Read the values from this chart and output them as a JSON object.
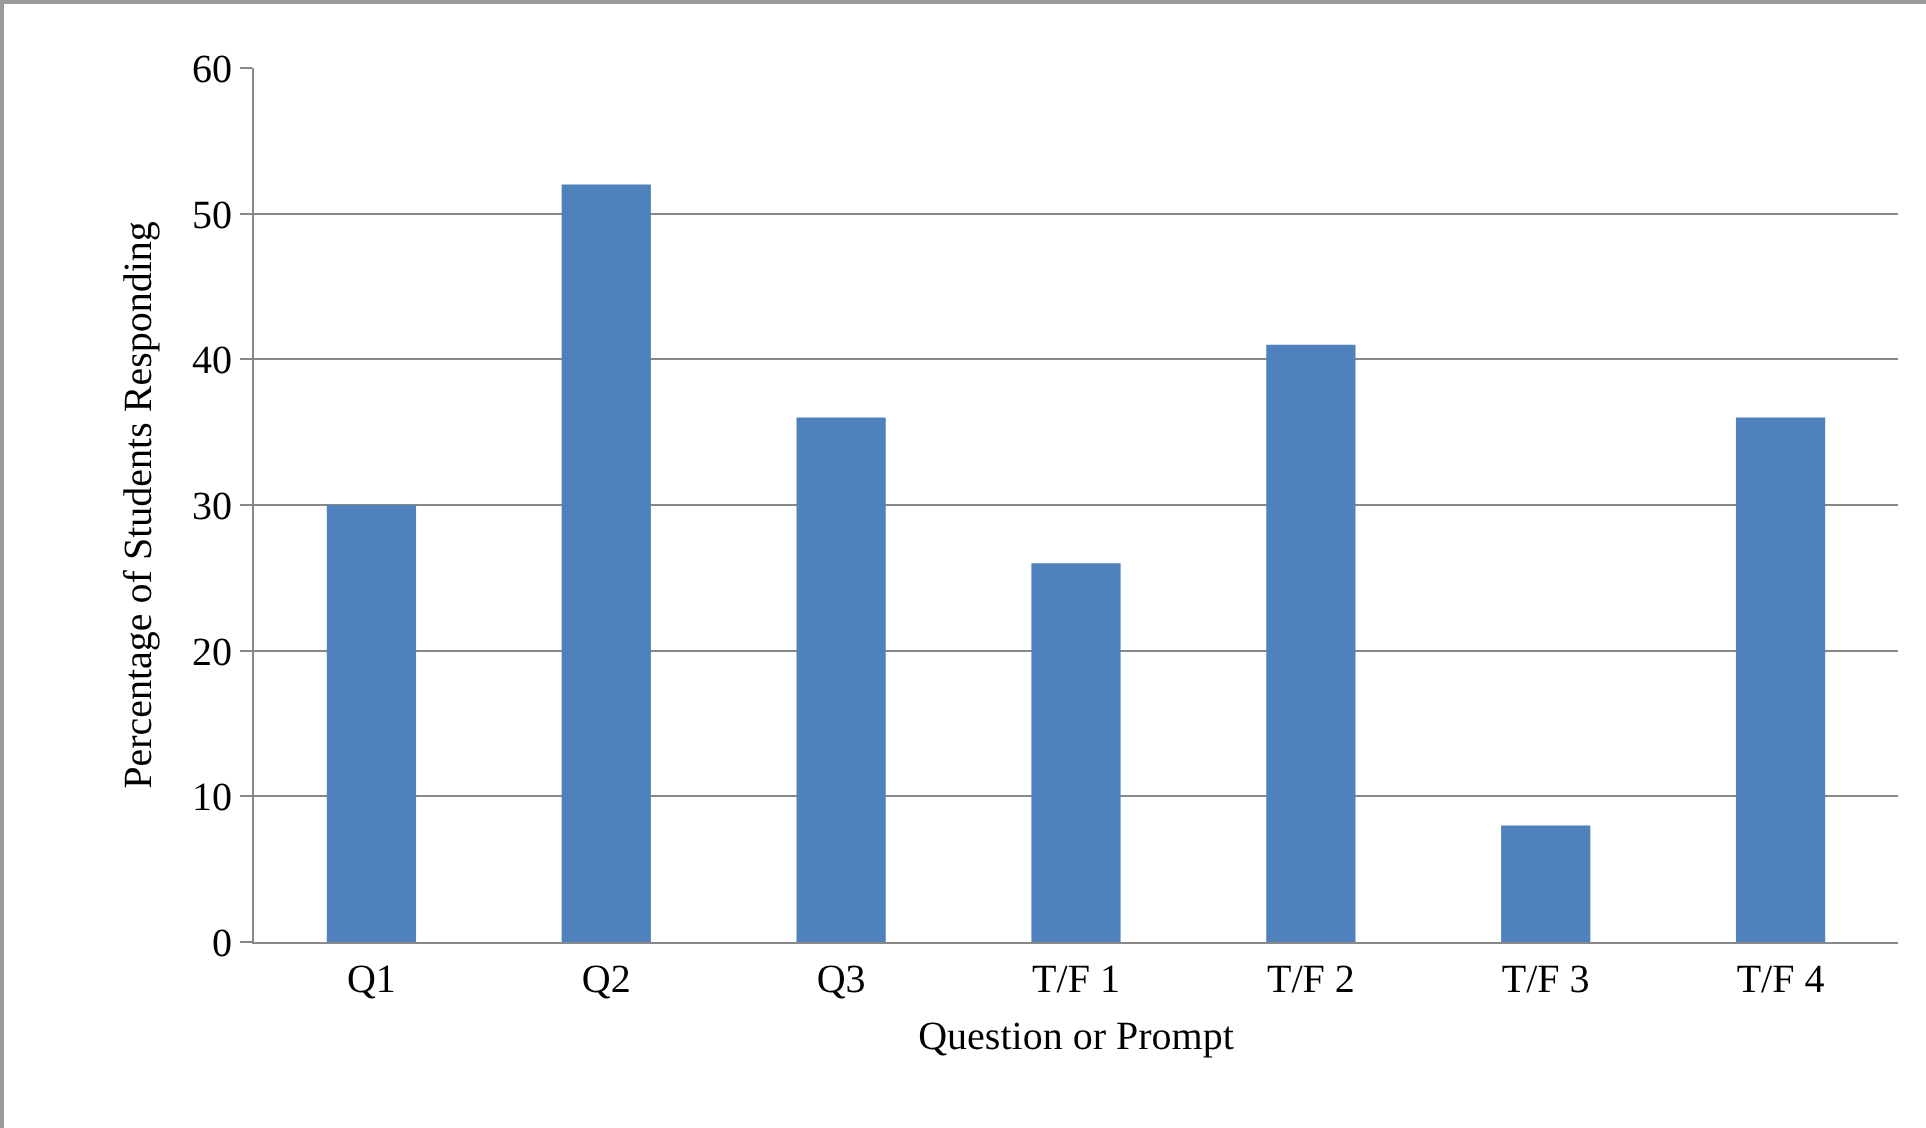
{
  "chart_data": {
    "type": "bar",
    "xlabel": "Question or Prompt",
    "ylabel": "Percentage of Students Responding",
    "categories": [
      "Q1",
      "Q2",
      "Q3",
      "T/F 1",
      "T/F 2",
      "T/F 3",
      "T/F 4"
    ],
    "values": [
      30,
      52,
      36,
      26,
      41,
      8,
      36
    ],
    "color": "#4f81bd",
    "ylim": [
      0,
      60
    ],
    "yticks": [
      0,
      10,
      20,
      30,
      40,
      50,
      60
    ],
    "grid": "y",
    "legend": false
  }
}
